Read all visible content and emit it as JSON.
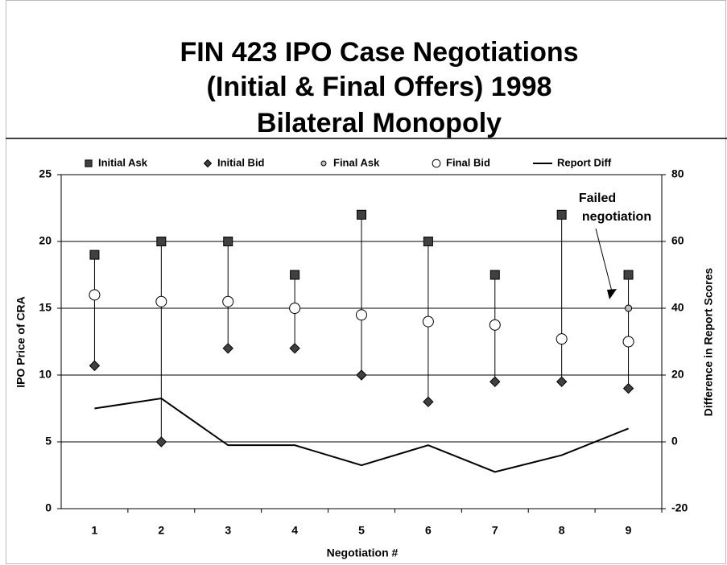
{
  "chart_data": {
    "type": "hilo",
    "title": [
      "FIN 423 IPO Case Negotiations",
      "(Initial & Final Offers) 1998",
      "Bilateral Monopoly"
    ],
    "xlabel": "Negotiation #",
    "ylabel": "IPO Price of CRA",
    "y2label": "Difference in Report Scores",
    "categories": [
      "1",
      "2",
      "3",
      "4",
      "5",
      "6",
      "7",
      "8",
      "9"
    ],
    "series": [
      {
        "name": "Initial Ask",
        "marker": "square",
        "color": "#404040",
        "values": [
          19,
          20,
          20,
          17.5,
          22,
          20,
          17.5,
          22,
          17.5
        ]
      },
      {
        "name": "Initial Bid",
        "marker": "diamond",
        "color": "#404040",
        "values": [
          10.7,
          5,
          12,
          12,
          10,
          8,
          9.5,
          9.5,
          9
        ]
      },
      {
        "name": "Final Ask",
        "marker": "circle-small",
        "color": "#c0c0c0",
        "values": [
          16,
          15.5,
          15.5,
          15,
          14.5,
          14,
          13.75,
          12.7,
          15
        ]
      },
      {
        "name": "Final Bid",
        "marker": "circle",
        "color": "#ffffff",
        "values": [
          16,
          15.5,
          15.5,
          15,
          14.5,
          14,
          13.75,
          12.7,
          12.5
        ]
      },
      {
        "name": "Report Diff",
        "marker": "line",
        "color": "#000000",
        "axis": "y2",
        "values": [
          10,
          13,
          -1,
          -1,
          -7,
          -1,
          -9,
          -4,
          4
        ]
      }
    ],
    "ylim": [
      0,
      25
    ],
    "yticks": [
      0,
      5,
      10,
      15,
      20,
      25
    ],
    "y2lim": [
      -20,
      80
    ],
    "y2ticks": [
      -20,
      0,
      20,
      40,
      60,
      80
    ],
    "grid": true,
    "legend": "top",
    "annotation": [
      "Failed",
      "negotiation"
    ]
  }
}
